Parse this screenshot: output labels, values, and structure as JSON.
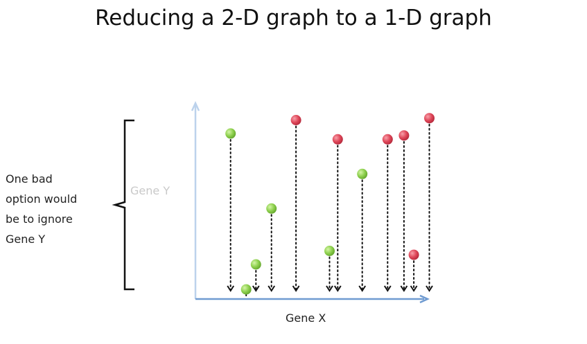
{
  "title": "Reducing a 2-D graph to a 1-D graph",
  "annotation": {
    "lines": [
      "One bad",
      "option would",
      "be to ignore",
      "Gene Y"
    ]
  },
  "axes": {
    "x_label": "Gene X",
    "y_label": "Gene Y",
    "x_axis_color": "#6f9bd1",
    "y_axis_color": "#bcd2ec"
  },
  "colors": {
    "green_point": "#8fd14f",
    "red_point": "#e0485a",
    "projection_line": "#111111",
    "brace": "#111111"
  },
  "chart_data": {
    "type": "scatter",
    "title": "",
    "xlabel": "Gene X",
    "ylabel": "Gene Y",
    "series": [
      {
        "color": "#8fd14f",
        "points": [
          {
            "x": 4.3,
            "y": 8.6
          },
          {
            "x": 6.2,
            "y": 0.5
          },
          {
            "x": 7.4,
            "y": 1.8
          },
          {
            "x": 9.3,
            "y": 4.7
          },
          {
            "x": 16.4,
            "y": 2.5
          },
          {
            "x": 20.4,
            "y": 6.5
          }
        ]
      },
      {
        "color": "#e0485a",
        "points": [
          {
            "x": 12.3,
            "y": 9.3
          },
          {
            "x": 17.4,
            "y": 8.3
          },
          {
            "x": 23.5,
            "y": 8.3
          },
          {
            "x": 25.5,
            "y": 8.5
          },
          {
            "x": 26.7,
            "y": 2.3
          },
          {
            "x": 28.6,
            "y": 9.4
          }
        ]
      }
    ],
    "projection": "onto x-axis",
    "xlim": [
      0,
      30
    ],
    "ylim": [
      0,
      10
    ],
    "grid": false
  }
}
